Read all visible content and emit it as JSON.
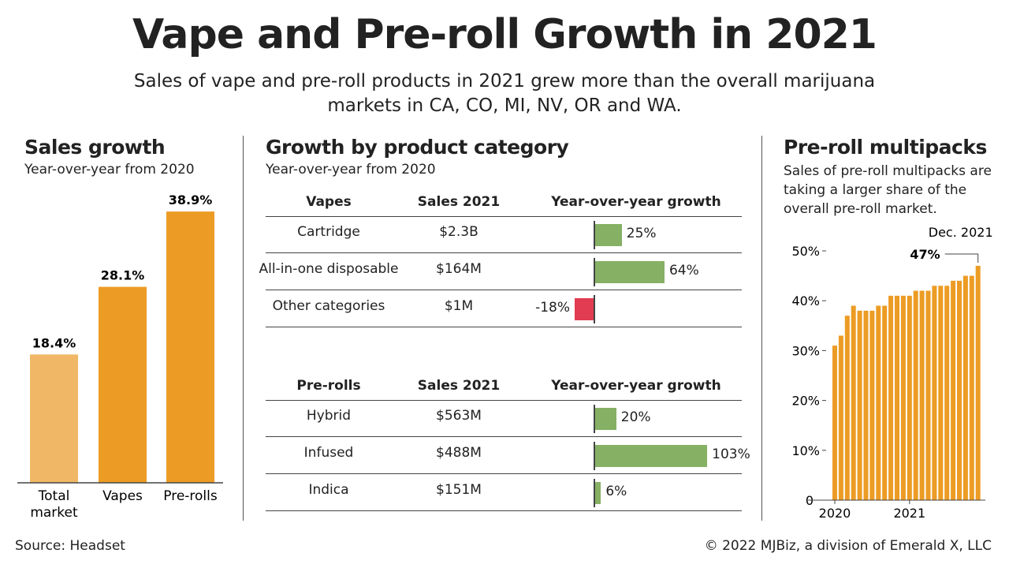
{
  "title": "Vape and Pre-roll Growth in 2021",
  "subtitle": "Sales of vape and pre-roll products in 2021 grew more than the overall marijuana markets in CA, CO, MI, NV, OR and WA.",
  "colors": {
    "orange": "#ec9c24",
    "light_orange": "#f0b866",
    "green": "#86b064",
    "red": "#e13c52"
  },
  "sales_growth": {
    "title": "Sales growth",
    "subtitle": "Year-over-year from 2020"
  },
  "category": {
    "title": "Growth by product category",
    "subtitle": "Year-over-year from 2020",
    "vapes": {
      "headers": [
        "Vapes",
        "Sales 2021",
        "Year-over-year growth"
      ],
      "rows": [
        {
          "name": "Cartridge",
          "sales": "$2.3B",
          "growth": 25,
          "label": "25%"
        },
        {
          "name": "All-in-one disposable",
          "sales": "$164M",
          "growth": 64,
          "label": "64%"
        },
        {
          "name": "Other categories",
          "sales": "$1M",
          "growth": -18,
          "label": "-18%"
        }
      ]
    },
    "prerolls": {
      "headers": [
        "Pre-rolls",
        "Sales 2021",
        "Year-over-year growth"
      ],
      "rows": [
        {
          "name": "Hybrid",
          "sales": "$563M",
          "growth": 20,
          "label": "20%"
        },
        {
          "name": "Infused",
          "sales": "$488M",
          "growth": 103,
          "label": "103%"
        },
        {
          "name": "Indica",
          "sales": "$151M",
          "growth": 6,
          "label": "6%"
        }
      ]
    }
  },
  "multipacks": {
    "title": "Pre-roll multipacks",
    "subtitle": "Sales of pre-roll multipacks are taking a larger share of the overall pre-roll market.",
    "annotation_date": "Dec. 2021",
    "annotation_value": "47%"
  },
  "chart_data": [
    {
      "type": "bar",
      "title": "Sales growth",
      "categories": [
        "Total market",
        "Vapes",
        "Pre-rolls"
      ],
      "values": [
        18.4,
        28.1,
        38.9
      ],
      "labels": [
        "18.4%",
        "28.1%",
        "38.9%"
      ]
    },
    {
      "type": "bar",
      "title": "Pre-roll multipacks",
      "ylim": [
        0,
        50
      ],
      "yticks": [
        "0",
        "10%",
        "20%",
        "30%",
        "40%",
        "50%"
      ],
      "xticks": [
        "2020",
        "2021"
      ],
      "x": [
        "Jan 2020",
        "Feb 2020",
        "Mar 2020",
        "Apr 2020",
        "May 2020",
        "Jun 2020",
        "Jul 2020",
        "Aug 2020",
        "Sep 2020",
        "Oct 2020",
        "Nov 2020",
        "Dec 2020",
        "Jan 2021",
        "Feb 2021",
        "Mar 2021",
        "Apr 2021",
        "May 2021",
        "Jun 2021",
        "Jul 2021",
        "Aug 2021",
        "Sep 2021",
        "Oct 2021",
        "Nov 2021",
        "Dec 2021"
      ],
      "values": [
        31,
        33,
        37,
        39,
        38,
        38,
        38,
        39,
        39,
        41,
        41,
        41,
        41,
        42,
        42,
        42,
        43,
        43,
        43,
        44,
        44,
        45,
        45,
        47
      ]
    }
  ],
  "footer": {
    "source": "Source: Headset",
    "credit": "© 2022 MJBiz, a division of Emerald X, LLC"
  }
}
